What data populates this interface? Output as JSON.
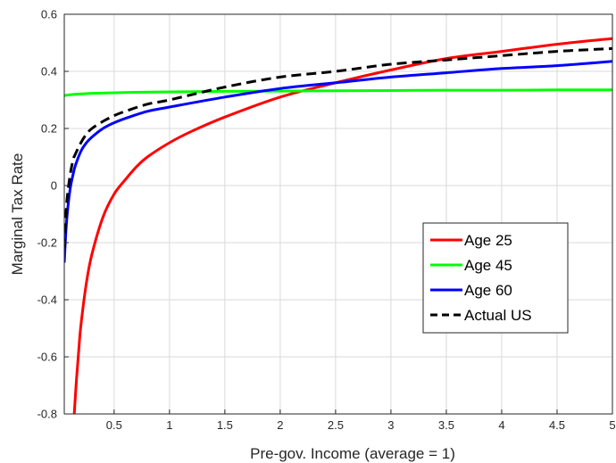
{
  "chart_data": {
    "type": "line",
    "title": "",
    "xlabel": "Pre-gov. Income (average = 1)",
    "ylabel": "Marginal Tax Rate",
    "xlim": [
      0.05,
      5
    ],
    "ylim": [
      -0.8,
      0.6
    ],
    "xticks": [
      0.5,
      1,
      1.5,
      2,
      2.5,
      3,
      3.5,
      4,
      4.5,
      5
    ],
    "xtick_labels": [
      "0.5",
      "1",
      "1.5",
      "2",
      "2.5",
      "3",
      "3.5",
      "4",
      "4.5",
      "5"
    ],
    "yticks": [
      -0.8,
      -0.6,
      -0.4,
      -0.2,
      0,
      0.2,
      0.4,
      0.6
    ],
    "ytick_labels": [
      "-0.8",
      "-0.6",
      "-0.4",
      "-0.2",
      "0",
      "0.2",
      "0.4",
      "0.6"
    ],
    "grid": true,
    "legend_position": "lower-right",
    "series": [
      {
        "name": "Age 25",
        "color": "#ff0000",
        "style": "solid",
        "x": [
          0.14,
          0.16,
          0.18,
          0.2,
          0.25,
          0.3,
          0.4,
          0.5,
          0.6,
          0.7,
          0.8,
          1.0,
          1.2,
          1.5,
          2.0,
          2.5,
          3.0,
          3.5,
          4.0,
          4.5,
          5.0
        ],
        "y": [
          -0.8,
          -0.68,
          -0.58,
          -0.49,
          -0.34,
          -0.24,
          -0.11,
          -0.03,
          0.02,
          0.065,
          0.1,
          0.15,
          0.19,
          0.24,
          0.31,
          0.36,
          0.405,
          0.445,
          0.47,
          0.495,
          0.515
        ]
      },
      {
        "name": "Age 45",
        "color": "#00ff00",
        "style": "solid",
        "x": [
          0.05,
          0.1,
          0.2,
          0.3,
          0.5,
          0.75,
          1.0,
          1.5,
          2.0,
          2.5,
          3.0,
          3.5,
          4.0,
          4.5,
          5.0
        ],
        "y": [
          0.315,
          0.318,
          0.321,
          0.323,
          0.325,
          0.327,
          0.328,
          0.33,
          0.331,
          0.332,
          0.333,
          0.334,
          0.334,
          0.335,
          0.335
        ]
      },
      {
        "name": "Age 60",
        "color": "#0000ff",
        "style": "solid",
        "x": [
          0.05,
          0.07,
          0.1,
          0.13,
          0.15,
          0.2,
          0.25,
          0.3,
          0.4,
          0.5,
          0.6,
          0.8,
          1.0,
          1.5,
          2.0,
          2.5,
          3.0,
          3.5,
          4.0,
          4.5,
          5.0
        ],
        "y": [
          -0.27,
          -0.13,
          -0.02,
          0.04,
          0.07,
          0.12,
          0.15,
          0.17,
          0.2,
          0.22,
          0.235,
          0.26,
          0.275,
          0.31,
          0.34,
          0.36,
          0.38,
          0.395,
          0.41,
          0.42,
          0.435
        ]
      },
      {
        "name": "Actual US",
        "color": "#000000",
        "style": "dashed",
        "x": [
          0.05,
          0.07,
          0.1,
          0.13,
          0.15,
          0.2,
          0.25,
          0.3,
          0.4,
          0.5,
          0.6,
          0.8,
          1.0,
          1.5,
          2.0,
          2.5,
          3.0,
          3.5,
          4.0,
          4.5,
          5.0
        ],
        "y": [
          -0.22,
          -0.07,
          0.03,
          0.09,
          0.11,
          0.15,
          0.18,
          0.2,
          0.225,
          0.245,
          0.26,
          0.285,
          0.3,
          0.345,
          0.38,
          0.4,
          0.425,
          0.44,
          0.455,
          0.47,
          0.48
        ]
      }
    ]
  }
}
